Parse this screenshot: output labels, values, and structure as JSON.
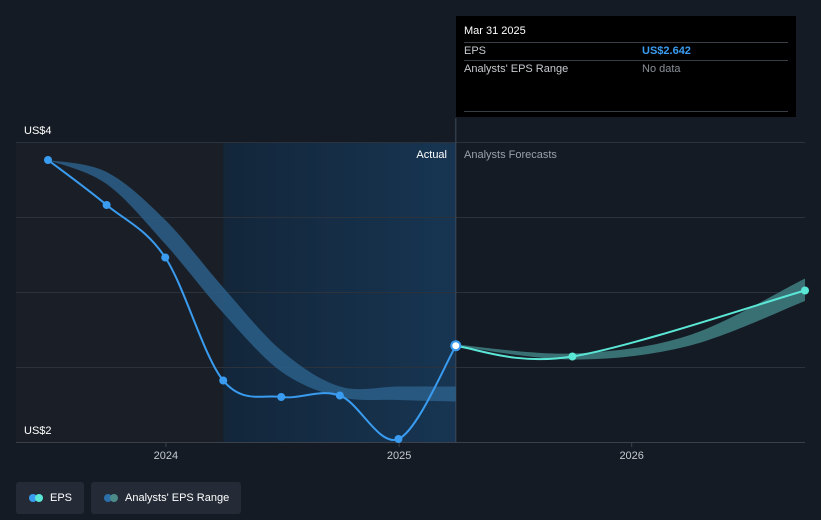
{
  "tooltip": {
    "date": "Mar 31 2025",
    "rows": [
      {
        "label": "EPS",
        "value": "US$2.642"
      },
      {
        "label": "Analysts' EPS Range",
        "value": "No data"
      }
    ]
  },
  "legend": [
    {
      "label": "EPS",
      "colors": [
        "#3a9cf0",
        "#5be7d6"
      ]
    },
    {
      "label": "Analysts' EPS Range",
      "colors": [
        "#2a6fa8",
        "#4d8b8b"
      ]
    }
  ],
  "chart_data": {
    "type": "line",
    "title": "",
    "ylabel_top": "US$4",
    "ylabel_bottom": "US$2",
    "ylim": [
      2,
      4
    ],
    "xlim": [
      "2023-06-30",
      "2026-09-30"
    ],
    "x_ticks": [
      "2024",
      "2025",
      "2026"
    ],
    "region_labels": {
      "actual": "Actual",
      "forecast": "Analysts Forecasts"
    },
    "highlight_range": [
      "2024-03-31",
      "2025-03-31"
    ],
    "forecast_start": "2025-03-31",
    "series": [
      {
        "name": "EPS",
        "kind": "actual",
        "color": "#3a9cf0",
        "points": [
          {
            "x": "2023-06-30",
            "y": 3.88
          },
          {
            "x": "2023-09-30",
            "y": 3.58
          },
          {
            "x": "2023-12-31",
            "y": 3.23
          },
          {
            "x": "2024-03-31",
            "y": 2.41
          },
          {
            "x": "2024-06-30",
            "y": 2.3
          },
          {
            "x": "2024-09-30",
            "y": 2.31
          },
          {
            "x": "2024-12-31",
            "y": 2.02
          },
          {
            "x": "2025-03-31",
            "y": 2.64
          }
        ]
      },
      {
        "name": "EPS",
        "kind": "forecast",
        "color": "#5be7d6",
        "points": [
          {
            "x": "2025-03-31",
            "y": 2.64
          },
          {
            "x": "2025-09-30",
            "y": 2.57
          },
          {
            "x": "2026-09-30",
            "y": 3.01
          }
        ]
      },
      {
        "name": "Analysts' EPS Range",
        "kind": "band",
        "color": "#2c5f88",
        "points": [
          {
            "x": "2023-06-30",
            "lo": 3.88,
            "hi": 3.88
          },
          {
            "x": "2023-09-30",
            "lo": 3.72,
            "hi": 3.8
          },
          {
            "x": "2023-12-31",
            "lo": 3.32,
            "hi": 3.48
          },
          {
            "x": "2024-03-31",
            "lo": 2.86,
            "hi": 3.03
          },
          {
            "x": "2024-06-30",
            "lo": 2.47,
            "hi": 2.61
          },
          {
            "x": "2024-09-30",
            "lo": 2.3,
            "hi": 2.37
          },
          {
            "x": "2024-12-31",
            "lo": 2.28,
            "hi": 2.37
          },
          {
            "x": "2025-03-31",
            "lo": 2.27,
            "hi": 2.37
          }
        ]
      },
      {
        "name": "Analysts' EPS Range",
        "kind": "band",
        "color": "#3f7f82",
        "points": [
          {
            "x": "2025-03-31",
            "lo": 2.64,
            "hi": 2.65
          },
          {
            "x": "2025-09-30",
            "lo": 2.55,
            "hi": 2.59
          },
          {
            "x": "2026-03-31",
            "lo": 2.64,
            "hi": 2.71
          },
          {
            "x": "2026-09-30",
            "lo": 2.94,
            "hi": 3.09
          }
        ]
      }
    ],
    "highlight_point": {
      "x": "2025-03-31",
      "y": 2.642
    }
  }
}
